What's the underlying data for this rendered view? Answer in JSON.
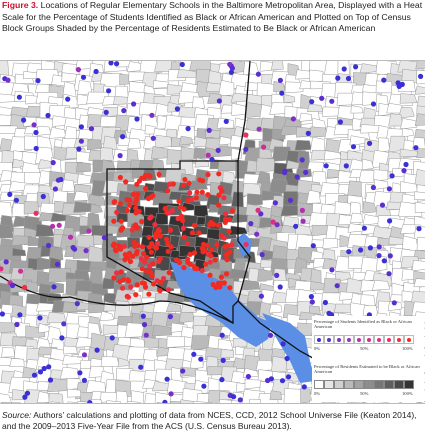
{
  "caption": {
    "figure_label": "Figure 3.",
    "text": "Locations of Regular Elementary Schools in the Baltimore Metropolitan Area, Displayed with a Heat Scale for the Percentage of Students Identified as Black or African American and Plotted on Top of Census Block Groups Shaded by the Percentage of Residents Estimated to Be Black or African American"
  },
  "legend": {
    "students_title": "Percentage of Students Identified as Black or African American",
    "residents_title": "Percentage of Residents Estimated to be Black or African American",
    "tick_min": "0%",
    "tick_mid": "50%",
    "tick_max": "100%",
    "dot_colors": [
      "#3b2fd6",
      "#5a2fd0",
      "#7a30c8",
      "#9a30bc",
      "#b52fae",
      "#cc2f96",
      "#de2f7c",
      "#e8305f",
      "#ef2f40",
      "#f22a22"
    ],
    "shade_colors": [
      "#ffffff",
      "#e6e6e6",
      "#d0d0d0",
      "#bababa",
      "#a3a3a3",
      "#8d8d8d",
      "#767676",
      "#5f5f5f",
      "#494949",
      "#333333"
    ]
  },
  "source": {
    "label": "Source:",
    "text": " Authors’ calculations and plotting of data from NCES, CCD, 2012 School Universe File (Keaton 2014), and the 2009–2013 Five-Year File from the ACS (U.S. Census Bureau 2013)."
  },
  "map_colors": {
    "water": "#5b8fe6",
    "boundary": "#111111"
  }
}
